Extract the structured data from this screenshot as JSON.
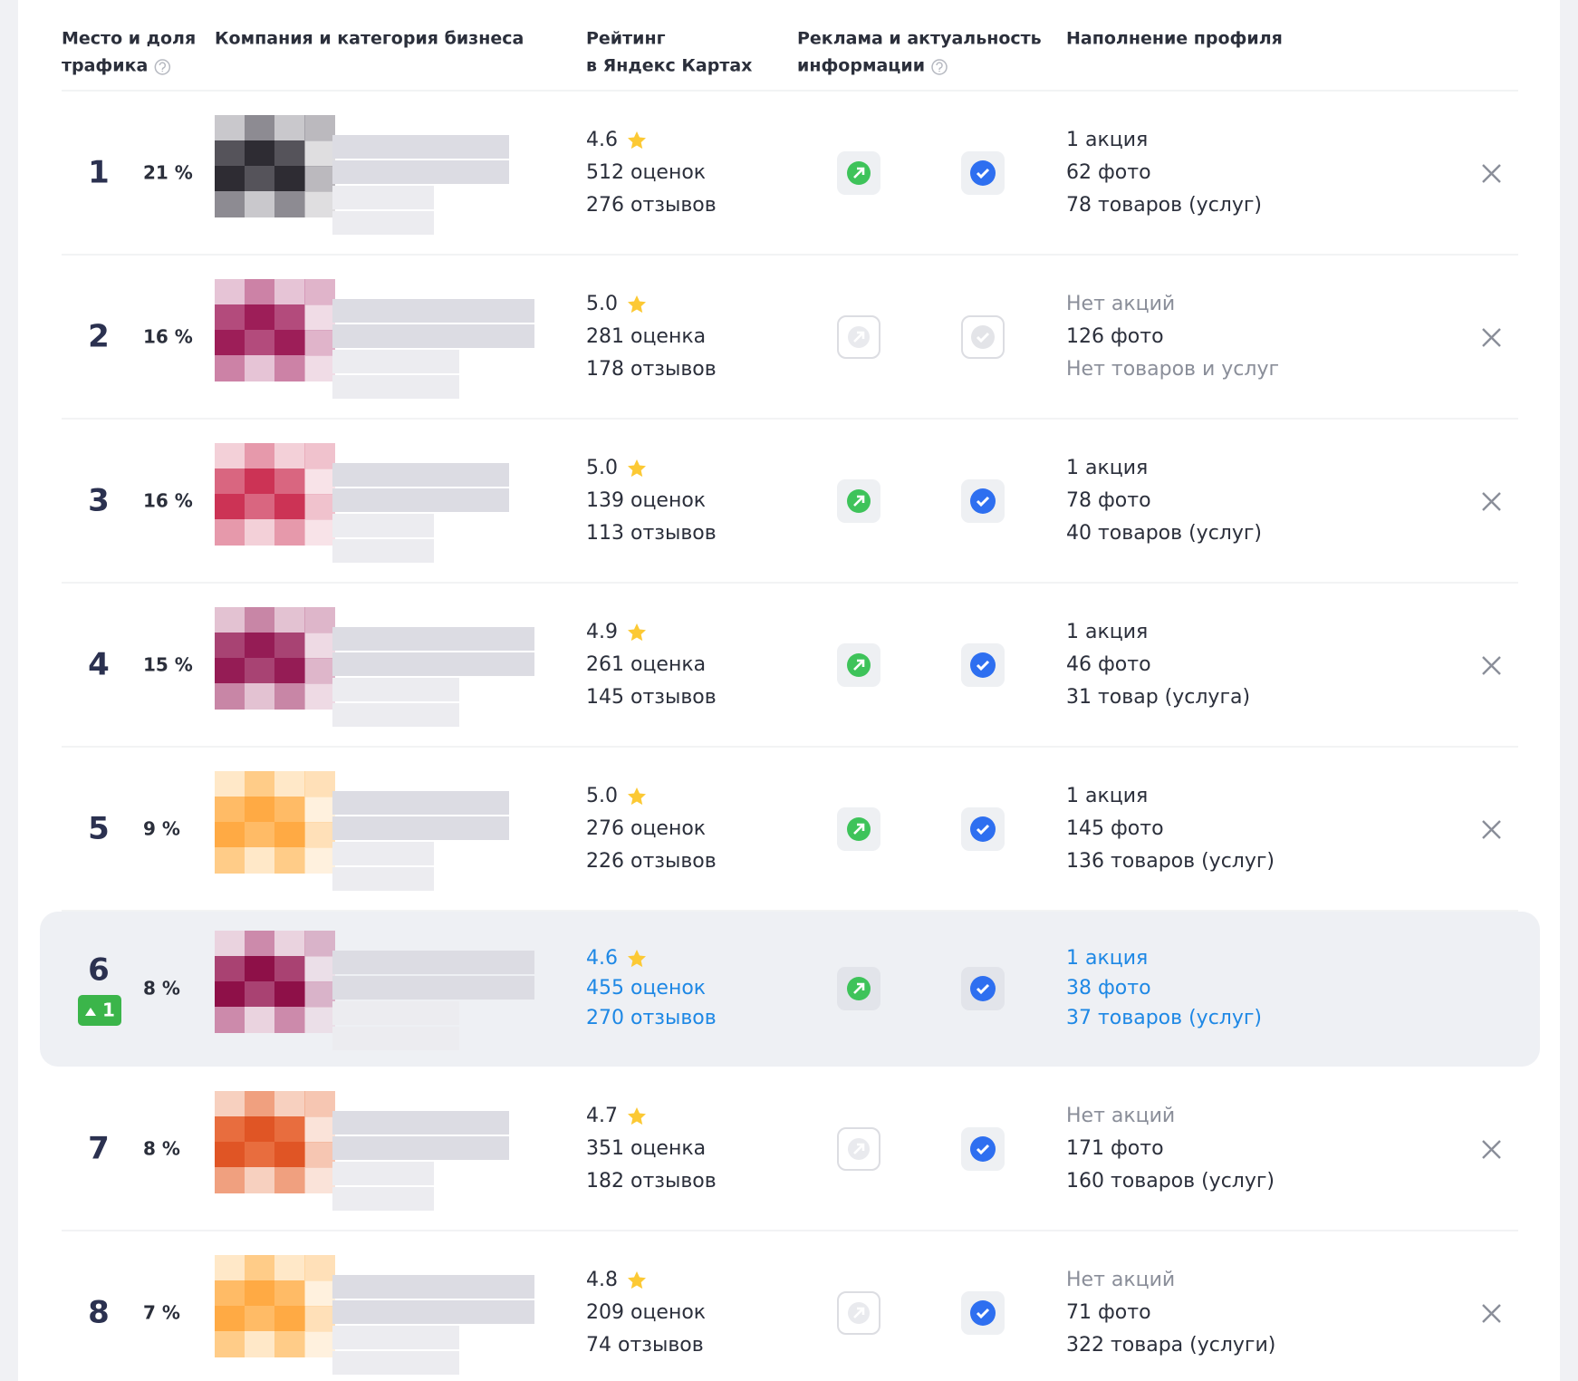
{
  "header": {
    "columns": [
      [
        "Место и доля",
        "трафика"
      ],
      [
        "Компания и категория бизнеса"
      ],
      [
        "Рейтинг",
        "в Яндекс Картах"
      ],
      [
        "Реклама и актуальность",
        "информации"
      ],
      [
        "Наполнение профиля"
      ]
    ]
  },
  "table": {
    "rows": [
      {
        "place": 1,
        "share": "21 %",
        "rating": "4.6",
        "ratings": "512 оценок",
        "reviews": "276 отзывов",
        "ad": true,
        "verified": true,
        "promo": "1 акция",
        "photos": "62 фото",
        "products": "78 товаров (услуг)"
      },
      {
        "place": 2,
        "share": "16 %",
        "rating": "5.0",
        "ratings": "281 оценка",
        "reviews": "178 отзывов",
        "ad": false,
        "verified": false,
        "promo": {
          "text": "Нет акций",
          "color": "#8a8e99"
        },
        "photos": "126 фото",
        "products": {
          "text": "Нет товаров и услуг",
          "color": "#8a8e99"
        }
      },
      {
        "place": 3,
        "share": "16 %",
        "rating": "5.0",
        "ratings": "139 оценок",
        "reviews": "113 отзывов",
        "ad": true,
        "verified": true,
        "promo": "1 акция",
        "photos": "78 фото",
        "products": "40 товаров (услуг)"
      },
      {
        "place": 4,
        "share": "15 %",
        "rating": "4.9",
        "ratings": "261 оценка",
        "reviews": "145 отзывов",
        "ad": true,
        "verified": true,
        "promo": "1 акция",
        "photos": "46 фото",
        "products": "31 товар (услуга)"
      },
      {
        "place": 5,
        "share": "9 %",
        "rating": "5.0",
        "ratings": "276 оценок",
        "reviews": "226 отзывов",
        "ad": true,
        "verified": true,
        "promo": "1 акция",
        "photos": "145 фото",
        "products": "136 товаров (услуг)"
      },
      {
        "place": 6,
        "share": "8 %",
        "rating": "4.6",
        "ratings": "455 оценок",
        "reviews": "270 отзывов",
        "ad": true,
        "verified": true,
        "promo": "1 акция",
        "photos": "38 фото",
        "products": "37 товаров (услуг)",
        "change": "1",
        "highlight": true,
        "highlight_color": "#1e88e5"
      },
      {
        "place": 7,
        "share": "8 %",
        "rating": "4.7",
        "ratings": "351 оценка",
        "reviews": "182 отзывов",
        "ad": false,
        "verified": true,
        "promo": {
          "text": "Нет акций",
          "color": "#8a8e99"
        },
        "photos": "171 фото",
        "products": "160 товаров (услуг)"
      },
      {
        "place": 8,
        "share": "7 %",
        "rating": "4.8",
        "ratings": "209 оценок",
        "reviews": "74 отзывов",
        "ad": false,
        "verified": true,
        "promo": {
          "text": "Нет акций",
          "color": "#8a8e99"
        },
        "photos": "71 фото",
        "products": "322 товара (услуги)"
      }
    ]
  }
}
